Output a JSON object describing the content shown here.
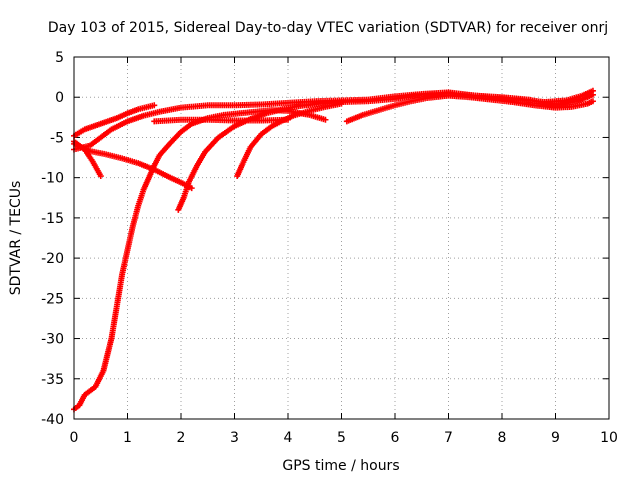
{
  "chart_data": {
    "type": "scatter",
    "title": "Day 103 of 2015, Sidereal Day-to-day VTEC variation (SDTVAR) for receiver onrj",
    "xlabel": "GPS time / hours",
    "ylabel": "SDTVAR / TECUs",
    "xlim": [
      0,
      10
    ],
    "ylim": [
      -40,
      5
    ],
    "xticks": [
      "0",
      "1",
      "2",
      "3",
      "4",
      "5",
      "6",
      "7",
      "8",
      "9",
      "10"
    ],
    "yticks": [
      "5",
      "0",
      "-5",
      "-10",
      "-15",
      "-20",
      "-25",
      "-30",
      "-35",
      "-40"
    ],
    "grid": true,
    "marker": "plus",
    "color": "#ff0000",
    "series": [
      {
        "points": [
          [
            0,
            -4.8
          ],
          [
            0.2,
            -4.0
          ],
          [
            0.5,
            -3.3
          ],
          [
            0.8,
            -2.6
          ],
          [
            1.0,
            -2.0
          ],
          [
            1.2,
            -1.5
          ],
          [
            1.5,
            -1.0
          ]
        ]
      },
      {
        "points": [
          [
            0,
            -5.5
          ],
          [
            0.2,
            -6.5
          ],
          [
            0.35,
            -8.0
          ],
          [
            0.5,
            -9.8
          ]
        ]
      },
      {
        "points": [
          [
            0,
            -5.8
          ],
          [
            0.3,
            -6.7
          ],
          [
            0.6,
            -7.1
          ],
          [
            0.9,
            -7.6
          ],
          [
            1.2,
            -8.2
          ],
          [
            1.5,
            -9.0
          ],
          [
            1.8,
            -10.0
          ],
          [
            2.0,
            -10.6
          ],
          [
            2.2,
            -11.3
          ]
        ]
      },
      {
        "points": [
          [
            0,
            -6.5
          ],
          [
            0.3,
            -6.0
          ],
          [
            0.5,
            -5.0
          ],
          [
            0.7,
            -4.0
          ],
          [
            1.0,
            -3.0
          ],
          [
            1.3,
            -2.3
          ],
          [
            1.6,
            -1.8
          ],
          [
            2.0,
            -1.3
          ],
          [
            2.5,
            -1.0
          ],
          [
            3.0,
            -1.0
          ],
          [
            3.5,
            -0.9
          ],
          [
            4.0,
            -0.7
          ],
          [
            4.5,
            -0.5
          ],
          [
            5.0,
            -0.4
          ],
          [
            5.5,
            -0.3
          ],
          [
            6.0,
            0.1
          ],
          [
            6.5,
            0.4
          ],
          [
            7.0,
            0.6
          ],
          [
            7.5,
            0.2
          ],
          [
            8.0,
            -0.1
          ],
          [
            8.5,
            -0.4
          ],
          [
            8.8,
            -0.6
          ],
          [
            9.2,
            -0.4
          ],
          [
            9.5,
            0.2
          ],
          [
            9.7,
            0.8
          ]
        ]
      },
      {
        "points": [
          [
            0,
            -38.8
          ],
          [
            0.1,
            -38.3
          ],
          [
            0.2,
            -37.0
          ],
          [
            0.4,
            -36.0
          ],
          [
            0.55,
            -34.0
          ],
          [
            0.7,
            -30.0
          ],
          [
            0.8,
            -26.0
          ],
          [
            0.9,
            -22.0
          ],
          [
            1.0,
            -19.0
          ],
          [
            1.1,
            -16.0
          ],
          [
            1.2,
            -13.5
          ],
          [
            1.3,
            -11.5
          ],
          [
            1.4,
            -10.0
          ],
          [
            1.5,
            -8.5
          ],
          [
            1.6,
            -7.2
          ],
          [
            1.8,
            -5.7
          ],
          [
            2.0,
            -4.3
          ],
          [
            2.2,
            -3.3
          ],
          [
            2.5,
            -2.6
          ],
          [
            2.8,
            -2.2
          ],
          [
            3.1,
            -2.0
          ],
          [
            3.4,
            -1.8
          ],
          [
            3.7,
            -1.6
          ],
          [
            4.0,
            -1.7
          ],
          [
            4.4,
            -2.2
          ],
          [
            4.7,
            -2.8
          ]
        ]
      },
      {
        "points": [
          [
            1.95,
            -14.0
          ],
          [
            2.05,
            -12.5
          ],
          [
            2.15,
            -10.5
          ],
          [
            2.3,
            -8.5
          ],
          [
            2.45,
            -6.8
          ],
          [
            2.7,
            -5.0
          ],
          [
            3.0,
            -3.6
          ],
          [
            3.3,
            -2.7
          ],
          [
            3.6,
            -2.0
          ],
          [
            3.9,
            -1.5
          ],
          [
            4.2,
            -1.1
          ],
          [
            4.6,
            -0.8
          ],
          [
            5.0,
            -0.6
          ],
          [
            5.5,
            -0.5
          ],
          [
            6.0,
            -0.2
          ],
          [
            6.5,
            0.3
          ],
          [
            7.0,
            0.5
          ],
          [
            7.5,
            0.2
          ],
          [
            8.0,
            0.0
          ],
          [
            8.5,
            -0.3
          ],
          [
            8.8,
            -0.7
          ],
          [
            9.1,
            -0.9
          ],
          [
            9.4,
            -0.5
          ],
          [
            9.7,
            0.3
          ]
        ]
      },
      {
        "points": [
          [
            3.05,
            -9.8
          ],
          [
            3.15,
            -8.3
          ],
          [
            3.3,
            -6.2
          ],
          [
            3.5,
            -4.6
          ],
          [
            3.7,
            -3.6
          ],
          [
            3.9,
            -2.9
          ],
          [
            4.1,
            -2.3
          ],
          [
            4.4,
            -1.7
          ],
          [
            4.7,
            -1.2
          ],
          [
            5.0,
            -0.8
          ]
        ]
      },
      {
        "points": [
          [
            5.1,
            -3.0
          ],
          [
            5.4,
            -2.2
          ],
          [
            5.7,
            -1.6
          ],
          [
            6.0,
            -1.0
          ],
          [
            6.3,
            -0.5
          ],
          [
            6.6,
            -0.1
          ],
          [
            7.0,
            0.2
          ],
          [
            7.4,
            0.0
          ],
          [
            7.8,
            -0.3
          ],
          [
            8.2,
            -0.6
          ],
          [
            8.6,
            -1.0
          ],
          [
            9.0,
            -1.3
          ],
          [
            9.3,
            -1.2
          ],
          [
            9.6,
            -0.8
          ],
          [
            9.7,
            -0.5
          ]
        ]
      },
      {
        "points": [
          [
            1.5,
            -3.0
          ],
          [
            2.0,
            -2.8
          ],
          [
            2.5,
            -2.8
          ],
          [
            3.0,
            -2.9
          ],
          [
            3.5,
            -2.9
          ],
          [
            4.0,
            -2.8
          ]
        ]
      }
    ]
  }
}
